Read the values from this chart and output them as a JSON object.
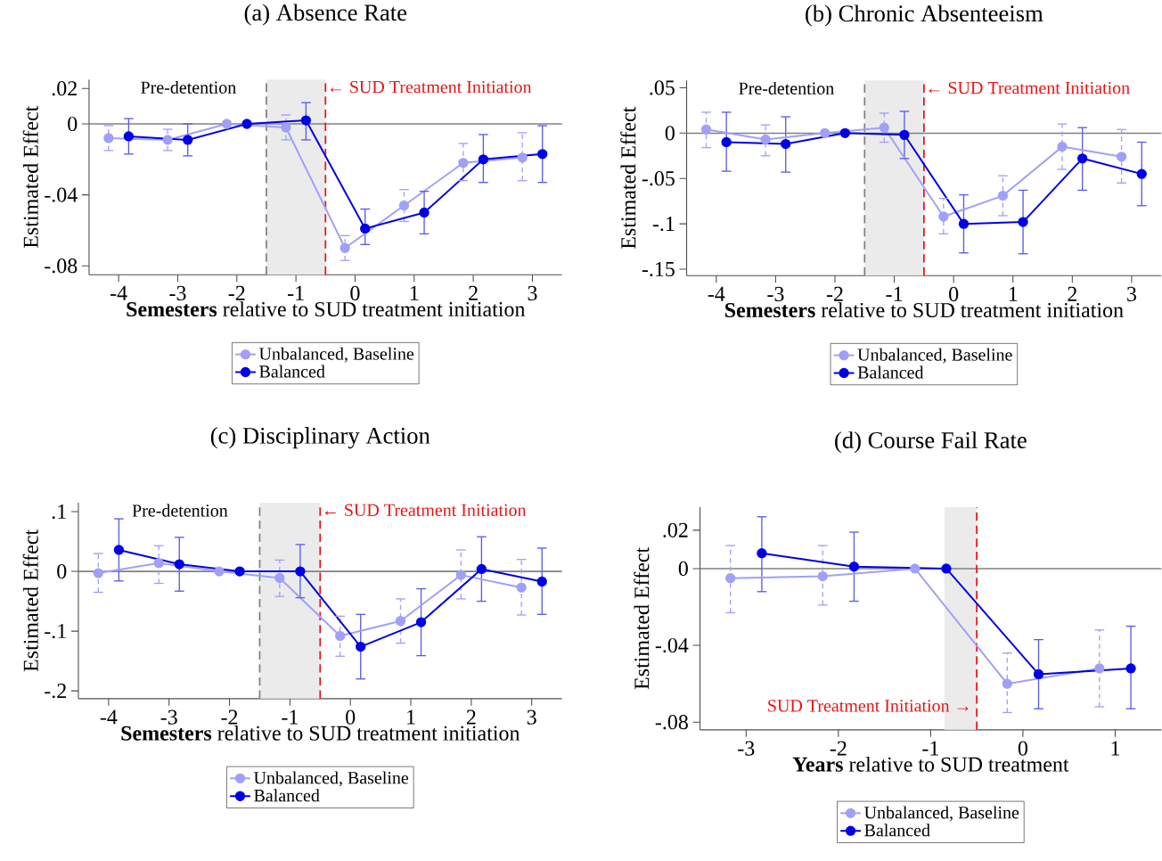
{
  "chart_data": [
    {
      "type": "line",
      "title": "(a) Absence Rate",
      "xlabel": "**Semesters** relative to SUD treatment initiation",
      "ylabel": "Estimated Effect",
      "legend": "bottom",
      "marker": "circle",
      "xlim": [
        -4.5,
        3.5
      ],
      "ylim": [
        -0.085,
        0.025
      ],
      "xticks": [
        -4,
        -3,
        -2,
        -1,
        0,
        1,
        2,
        3
      ],
      "yticks": [
        {
          "value": 0.02,
          "label": ".02"
        },
        0,
        {
          "value": -0.04,
          "label": "-.04"
        },
        {
          "value": -0.08,
          "label": "-.08"
        }
      ],
      "series": [
        {
          "name": "Unbalanced, Baseline",
          "color": "#a0a0f8",
          "x": [
            -4.17,
            -3.17,
            -2.17,
            -1.17,
            -0.17,
            0.83,
            1.83,
            2.83
          ],
          "values": [
            -0.008,
            -0.009,
            0,
            -0.002,
            -0.07,
            -0.046,
            -0.022,
            -0.019
          ],
          "errors": [
            [
              -0.015,
              -0.001
            ],
            [
              -0.015,
              -0.003
            ],
            null,
            [
              -0.009,
              0.005
            ],
            [
              -0.077,
              -0.063
            ],
            [
              -0.055,
              -0.037
            ],
            [
              -0.032,
              -0.011
            ],
            [
              -0.032,
              -0.005
            ]
          ]
        },
        {
          "name": "Balanced",
          "color": "#0000e6",
          "x": [
            -3.83,
            -2.83,
            -1.83,
            -0.83,
            0.17,
            1.17,
            2.17,
            3.17
          ],
          "values": [
            -0.007,
            -0.009,
            0,
            0.002,
            -0.059,
            -0.05,
            -0.02,
            -0.017
          ],
          "errors": [
            [
              -0.017,
              0.003
            ],
            [
              -0.018,
              0
            ],
            null,
            [
              -0.009,
              0.012
            ],
            [
              -0.068,
              -0.048
            ],
            [
              -0.062,
              -0.038
            ],
            [
              -0.033,
              -0.006
            ],
            [
              -0.033,
              -0.001
            ]
          ]
        }
      ],
      "bands": [
        {
          "axis": "x",
          "from": -1.5,
          "to": -0.5,
          "color": "#ebebeb"
        }
      ],
      "ref_lines": [
        {
          "axis": "y",
          "value": 0,
          "color": "#808080"
        },
        {
          "axis": "x",
          "value": -1.5,
          "color": "#808080",
          "line_style": "dashed"
        },
        {
          "axis": "x",
          "value": -0.5,
          "color": "#ee1111",
          "line_style": "dashed",
          "label": "← SUD Treatment Initiation"
        }
      ],
      "annotations": [
        "Pre-detention"
      ]
    },
    {
      "type": "line",
      "title": "(b) Chronic Absenteeism",
      "xlabel": "**Semesters** relative to SUD treatment initiation",
      "ylabel": "Estimated Effect",
      "legend": "bottom",
      "marker": "circle",
      "xlim": [
        -4.5,
        3.5
      ],
      "ylim": [
        -0.157,
        0.058
      ],
      "xticks": [
        -4,
        -3,
        -2,
        -1,
        0,
        1,
        2,
        3
      ],
      "yticks": [
        {
          "value": 0.05,
          "label": ".05"
        },
        0,
        {
          "value": -0.05,
          "label": "-.05"
        },
        {
          "value": -0.1,
          "label": "-.1"
        },
        {
          "value": -0.15,
          "label": "-.15"
        }
      ],
      "series": [
        {
          "name": "Unbalanced, Baseline",
          "color": "#a0a0f8",
          "x": [
            -4.17,
            -3.17,
            -2.17,
            -1.17,
            -0.17,
            0.83,
            1.83,
            2.83
          ],
          "values": [
            0.004,
            -0.007,
            0,
            0.006,
            -0.092,
            -0.069,
            -0.015,
            -0.026
          ],
          "errors": [
            [
              -0.016,
              0.023
            ],
            [
              -0.025,
              0.009
            ],
            null,
            [
              -0.01,
              0.022
            ],
            [
              -0.111,
              -0.072
            ],
            [
              -0.091,
              -0.047
            ],
            [
              -0.04,
              0.01
            ],
            [
              -0.055,
              0.004
            ]
          ]
        },
        {
          "name": "Balanced",
          "color": "#0000e6",
          "x": [
            -3.83,
            -2.83,
            -1.83,
            -0.83,
            0.17,
            1.17,
            2.17,
            3.17
          ],
          "values": [
            -0.01,
            -0.012,
            0,
            -0.002,
            -0.1,
            -0.098,
            -0.028,
            -0.045
          ],
          "errors": [
            [
              -0.042,
              0.023
            ],
            [
              -0.043,
              0.018
            ],
            null,
            [
              -0.028,
              0.024
            ],
            [
              -0.132,
              -0.068
            ],
            [
              -0.133,
              -0.063
            ],
            [
              -0.063,
              0.006
            ],
            [
              -0.08,
              -0.01
            ]
          ]
        }
      ],
      "bands": [
        {
          "axis": "x",
          "from": -1.5,
          "to": -0.5,
          "color": "#ebebeb"
        }
      ],
      "ref_lines": [
        {
          "axis": "y",
          "value": 0,
          "color": "#808080"
        },
        {
          "axis": "x",
          "value": -1.5,
          "color": "#808080",
          "line_style": "dashed"
        },
        {
          "axis": "x",
          "value": -0.5,
          "color": "#ee1111",
          "line_style": "dashed",
          "label": "← SUD Treatment Initiation"
        }
      ],
      "annotations": [
        "Pre-detention"
      ]
    },
    {
      "type": "line",
      "title": "(c) Disciplinary Action",
      "xlabel": "**Semesters** relative to SUD treatment initiation",
      "ylabel": "Estimated Effect",
      "legend": "bottom",
      "marker": "circle",
      "xlim": [
        -4.5,
        3.5
      ],
      "ylim": [
        -0.213,
        0.115
      ],
      "xticks": [
        -4,
        -3,
        -2,
        -1,
        0,
        1,
        2,
        3
      ],
      "yticks": [
        {
          "value": 0.1,
          "label": ".1"
        },
        0,
        {
          "value": -0.1,
          "label": "-.1"
        },
        {
          "value": -0.2,
          "label": "-.2"
        }
      ],
      "series": [
        {
          "name": "Unbalanced, Baseline",
          "color": "#a0a0f8",
          "x": [
            -4.17,
            -3.17,
            -2.17,
            -1.17,
            -0.17,
            0.83,
            1.83,
            2.83
          ],
          "values": [
            -0.003,
            0.014,
            0,
            -0.011,
            -0.108,
            -0.083,
            -0.006,
            -0.027
          ],
          "errors": [
            [
              -0.035,
              0.03
            ],
            [
              -0.02,
              0.043
            ],
            null,
            [
              -0.042,
              0.019
            ],
            [
              -0.142,
              -0.075
            ],
            [
              -0.12,
              -0.046
            ],
            [
              -0.046,
              0.036
            ],
            [
              -0.073,
              0.02
            ]
          ]
        },
        {
          "name": "Balanced",
          "color": "#0000e6",
          "x": [
            -3.83,
            -2.83,
            -1.83,
            -0.83,
            0.17,
            1.17,
            2.17,
            3.17
          ],
          "values": [
            0.036,
            0.012,
            0,
            0,
            -0.126,
            -0.085,
            0.004,
            -0.017
          ],
          "errors": [
            [
              -0.016,
              0.088
            ],
            [
              -0.033,
              0.057
            ],
            null,
            [
              -0.044,
              0.045
            ],
            [
              -0.18,
              -0.072
            ],
            [
              -0.141,
              -0.029
            ],
            [
              -0.05,
              0.058
            ],
            [
              -0.072,
              0.039
            ]
          ]
        }
      ],
      "bands": [
        {
          "axis": "x",
          "from": -1.5,
          "to": -0.5,
          "color": "#ebebeb"
        }
      ],
      "ref_lines": [
        {
          "axis": "y",
          "value": 0,
          "color": "#808080"
        },
        {
          "axis": "x",
          "value": -1.5,
          "color": "#808080",
          "line_style": "dashed"
        },
        {
          "axis": "x",
          "value": -0.5,
          "color": "#ee1111",
          "line_style": "dashed",
          "label": "← SUD Treatment Initiation"
        }
      ],
      "annotations": [
        "Pre-detention"
      ]
    },
    {
      "type": "line",
      "title": "(d) Course Fail Rate",
      "xlabel": "**Years** relative to SUD treatment",
      "ylabel": "Estimated Effect",
      "legend": "bottom",
      "marker": "circle",
      "xlim": [
        -3.5,
        1.5
      ],
      "ylim": [
        -0.084,
        0.032
      ],
      "xticks": [
        -3,
        -2,
        -1,
        0,
        1
      ],
      "yticks": [
        {
          "value": 0.02,
          "label": ".02"
        },
        0,
        {
          "value": -0.04,
          "label": "-.04"
        },
        {
          "value": -0.08,
          "label": "-.08"
        }
      ],
      "series": [
        {
          "name": "Unbalanced, Baseline",
          "color": "#a0a0f8",
          "x": [
            -3.17,
            -2.17,
            -1.17,
            -0.17,
            0.83
          ],
          "values": [
            -0.005,
            -0.004,
            0,
            -0.06,
            -0.052
          ],
          "errors": [
            [
              -0.023,
              0.012
            ],
            [
              -0.019,
              0.012
            ],
            null,
            [
              -0.075,
              -0.044
            ],
            [
              -0.072,
              -0.032
            ]
          ]
        },
        {
          "name": "Balanced",
          "color": "#0000e6",
          "x": [
            -2.83,
            -1.83,
            -0.83,
            0.17,
            1.17
          ],
          "values": [
            0.008,
            0.001,
            0,
            -0.055,
            -0.052
          ],
          "errors": [
            [
              -0.012,
              0.027
            ],
            [
              -0.017,
              0.019
            ],
            null,
            [
              -0.073,
              -0.037
            ],
            [
              -0.073,
              -0.03
            ]
          ]
        }
      ],
      "bands": [
        {
          "axis": "x",
          "from": -0.85,
          "to": -0.5,
          "color": "#ebebeb"
        }
      ],
      "ref_lines": [
        {
          "axis": "y",
          "value": 0,
          "color": "#808080"
        },
        {
          "axis": "x",
          "value": -0.5,
          "color": "#ee1111",
          "line_style": "dashed",
          "label": "SUD Treatment Initiation →"
        }
      ]
    }
  ]
}
